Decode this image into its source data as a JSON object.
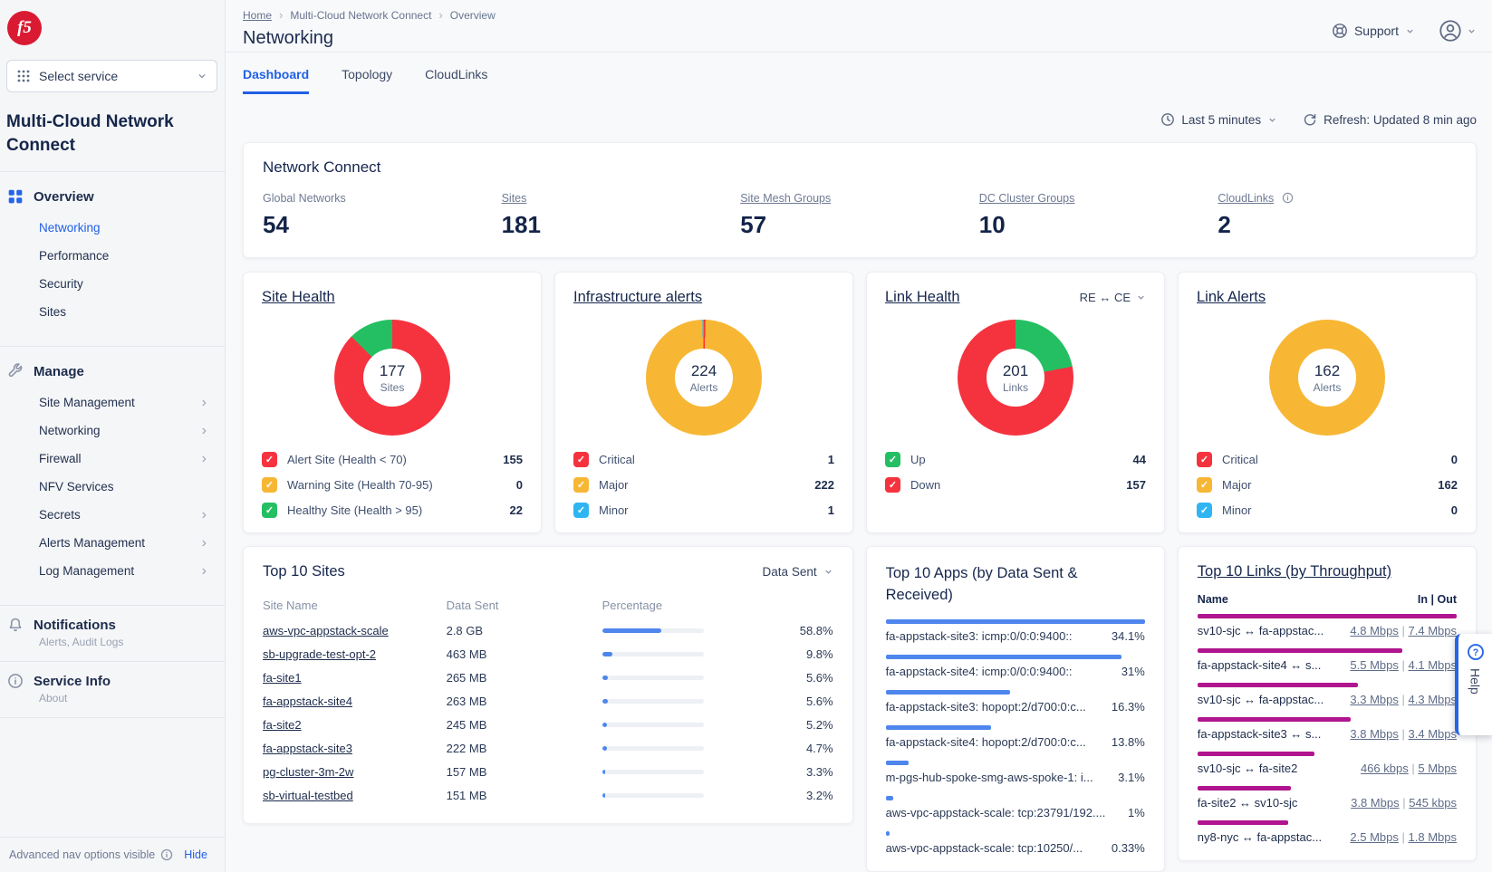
{
  "brand": {
    "logo_text": "f5"
  },
  "sidebar": {
    "service_selector": "Select service",
    "product_title": "Multi-Cloud Network Connect",
    "overview": {
      "label": "Overview",
      "items": [
        "Networking",
        "Performance",
        "Security",
        "Sites"
      ],
      "active_item": "Networking"
    },
    "manage": {
      "label": "Manage",
      "items": [
        {
          "label": "Site Management",
          "expandable": true
        },
        {
          "label": "Networking",
          "expandable": true
        },
        {
          "label": "Firewall",
          "expandable": true
        },
        {
          "label": "NFV Services",
          "expandable": false
        },
        {
          "label": "Secrets",
          "expandable": true
        },
        {
          "label": "Alerts Management",
          "expandable": true
        },
        {
          "label": "Log Management",
          "expandable": true
        }
      ]
    },
    "notifications": {
      "label": "Notifications",
      "sublabel": "Alerts, Audit Logs"
    },
    "service_info": {
      "label": "Service Info",
      "sublabel": "About"
    },
    "footer": {
      "text": "Advanced nav options visible",
      "action": "Hide"
    }
  },
  "header": {
    "breadcrumb": [
      "Home",
      "Multi-Cloud Network Connect",
      "Overview"
    ],
    "title": "Networking",
    "support": "Support",
    "tabs": [
      "Dashboard",
      "Topology",
      "CloudLinks"
    ],
    "active_tab": "Dashboard",
    "time_range": "Last 5 minutes",
    "refresh": "Refresh: Updated 8 min ago"
  },
  "summary": {
    "title": "Network Connect",
    "stats": [
      {
        "label": "Global Networks",
        "value": "54",
        "linked": false,
        "info": false
      },
      {
        "label": "Sites",
        "value": "181",
        "linked": true,
        "info": false
      },
      {
        "label": "Site Mesh Groups",
        "value": "57",
        "linked": true,
        "info": false
      },
      {
        "label": "DC Cluster Groups",
        "value": "10",
        "linked": true,
        "info": false
      },
      {
        "label": "CloudLinks",
        "value": "2",
        "linked": true,
        "info": true
      }
    ]
  },
  "colors": {
    "critical_red": "#F5333F",
    "major_orange": "#F7B735",
    "minor_blue": "#30B5F3",
    "healthy_green": "#25BF63",
    "bar_blue": "#4E86EE",
    "bar_magenta": "#B0158F",
    "accent_blue": "#2160E6"
  },
  "chart_data": [
    {
      "type": "pie",
      "title": "Site Health",
      "center_value": "177",
      "center_label": "Sites",
      "legend_position": "bottom",
      "slices": [
        {
          "label": "Alert Site (Health < 70)",
          "value": 155,
          "color": "#F5333F"
        },
        {
          "label": "Warning Site (Health 70-95)",
          "value": 0,
          "color": "#F7B735"
        },
        {
          "label": "Healthy Site (Health > 95)",
          "value": 22,
          "color": "#25BF63"
        }
      ]
    },
    {
      "type": "pie",
      "title": "Infrastructure alerts",
      "center_value": "224",
      "center_label": "Alerts",
      "legend_position": "bottom",
      "slices": [
        {
          "label": "Critical",
          "value": 1,
          "color": "#F5333F"
        },
        {
          "label": "Major",
          "value": 222,
          "color": "#F7B735"
        },
        {
          "label": "Minor",
          "value": 1,
          "color": "#30B5F3"
        }
      ]
    },
    {
      "type": "pie",
      "title": "Link Health",
      "selector": "RE ↔ CE",
      "center_value": "201",
      "center_label": "Links",
      "legend_position": "bottom",
      "slices": [
        {
          "label": "Up",
          "value": 44,
          "color": "#25BF63"
        },
        {
          "label": "Down",
          "value": 157,
          "color": "#F5333F"
        }
      ]
    },
    {
      "type": "pie",
      "title": "Link Alerts",
      "center_value": "162",
      "center_label": "Alerts",
      "legend_position": "bottom",
      "slices": [
        {
          "label": "Critical",
          "value": 0,
          "color": "#F5333F"
        },
        {
          "label": "Major",
          "value": 162,
          "color": "#F7B735"
        },
        {
          "label": "Minor",
          "value": 0,
          "color": "#30B5F3"
        }
      ]
    },
    {
      "type": "table",
      "title": "Top 10 Sites",
      "sort_by": "Data Sent",
      "columns": [
        "Site Name",
        "Data Sent",
        "Percentage"
      ],
      "rows": [
        {
          "name": "aws-vpc-appstack-scale",
          "data_sent": "2.8 GB",
          "pct": 58.8,
          "pct_label": "58.8%"
        },
        {
          "name": "sb-upgrade-test-opt-2",
          "data_sent": "463 MB",
          "pct": 9.8,
          "pct_label": "9.8%"
        },
        {
          "name": "fa-site1",
          "data_sent": "265 MB",
          "pct": 5.6,
          "pct_label": "5.6%"
        },
        {
          "name": "fa-appstack-site4",
          "data_sent": "263 MB",
          "pct": 5.6,
          "pct_label": "5.6%"
        },
        {
          "name": "fa-site2",
          "data_sent": "245 MB",
          "pct": 5.2,
          "pct_label": "5.2%"
        },
        {
          "name": "fa-appstack-site3",
          "data_sent": "222 MB",
          "pct": 4.7,
          "pct_label": "4.7%"
        },
        {
          "name": "pg-cluster-3m-2w",
          "data_sent": "157 MB",
          "pct": 3.3,
          "pct_label": "3.3%"
        },
        {
          "name": "sb-virtual-testbed",
          "data_sent": "151 MB",
          "pct": 3.2,
          "pct_label": "3.2%"
        }
      ]
    },
    {
      "type": "bar",
      "title": "Top 10 Apps (by Data Sent & Received)",
      "items": [
        {
          "label": "fa-appstack-site3: icmp:0/0:0:9400::",
          "pct_label": "34.1%",
          "bar": 100
        },
        {
          "label": "fa-appstack-site4: icmp:0/0:0:9400::",
          "pct_label": "31%",
          "bar": 91
        },
        {
          "label": "fa-appstack-site3: hopopt:2/d700:0:c...",
          "pct_label": "16.3%",
          "bar": 48
        },
        {
          "label": "fa-appstack-site4: hopopt:2/d700:0:c...",
          "pct_label": "13.8%",
          "bar": 40.5
        },
        {
          "label": "m-pgs-hub-spoke-smg-aws-spoke-1: i...",
          "pct_label": "3.1%",
          "bar": 9
        },
        {
          "label": "aws-vpc-appstack-scale: tcp:23791/192....",
          "pct_label": "1%",
          "bar": 3
        },
        {
          "label": "aws-vpc-appstack-scale: tcp:10250/...",
          "pct_label": "0.33%",
          "bar": 1.5
        }
      ]
    },
    {
      "type": "bar",
      "title": "Top 10 Links (by Throughput)",
      "name_header": "Name",
      "inout_header": "In | Out",
      "items": [
        {
          "name": "sv10-sjc ↔ fa-appstac...",
          "in": "4.8 Mbps",
          "out": "7.4 Mbps",
          "bar": 100
        },
        {
          "name": "fa-appstack-site4 ↔ s...",
          "in": "5.5 Mbps",
          "out": "4.1 Mbps",
          "bar": 79
        },
        {
          "name": "sv10-sjc ↔ fa-appstac...",
          "in": "3.3 Mbps",
          "out": "4.3 Mbps",
          "bar": 62
        },
        {
          "name": "fa-appstack-site3 ↔ s...",
          "in": "3.8 Mbps",
          "out": "3.4 Mbps",
          "bar": 59
        },
        {
          "name": "sv10-sjc ↔ fa-site2",
          "in": "466 kbps",
          "out": "5 Mbps",
          "bar": 45
        },
        {
          "name": "fa-site2 ↔ sv10-sjc",
          "in": "3.8 Mbps",
          "out": "545 kbps",
          "bar": 36
        },
        {
          "name": "ny8-nyc ↔ fa-appstac...",
          "in": "2.5 Mbps",
          "out": "1.8 Mbps",
          "bar": 35
        }
      ]
    }
  ],
  "help": {
    "label": "Help"
  }
}
